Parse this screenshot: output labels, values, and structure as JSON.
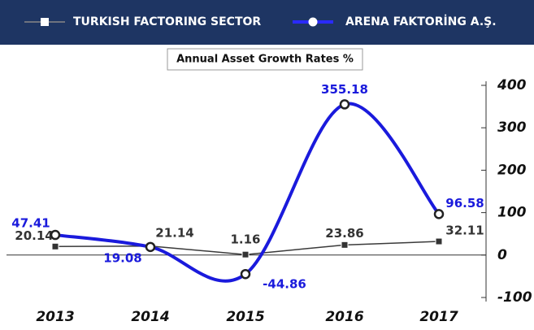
{
  "chart_data": {
    "type": "line",
    "title": "Annual Asset Growth Rates %",
    "categories": [
      "2013",
      "2014",
      "2015",
      "2016",
      "2017"
    ],
    "series": [
      {
        "name": "TURKISH FACTORING SECTOR",
        "color": "#3a3a3a",
        "values": [
          20.14,
          21.14,
          1.16,
          23.86,
          32.11
        ]
      },
      {
        "name": "ARENA FAKTORİNG A.Ş.",
        "color": "#1a1adc",
        "values": [
          47.41,
          19.08,
          -44.86,
          355.18,
          96.58
        ]
      }
    ],
    "ylim": [
      -100,
      400
    ],
    "yticks": [
      -100,
      0,
      100,
      200,
      300,
      400
    ]
  }
}
